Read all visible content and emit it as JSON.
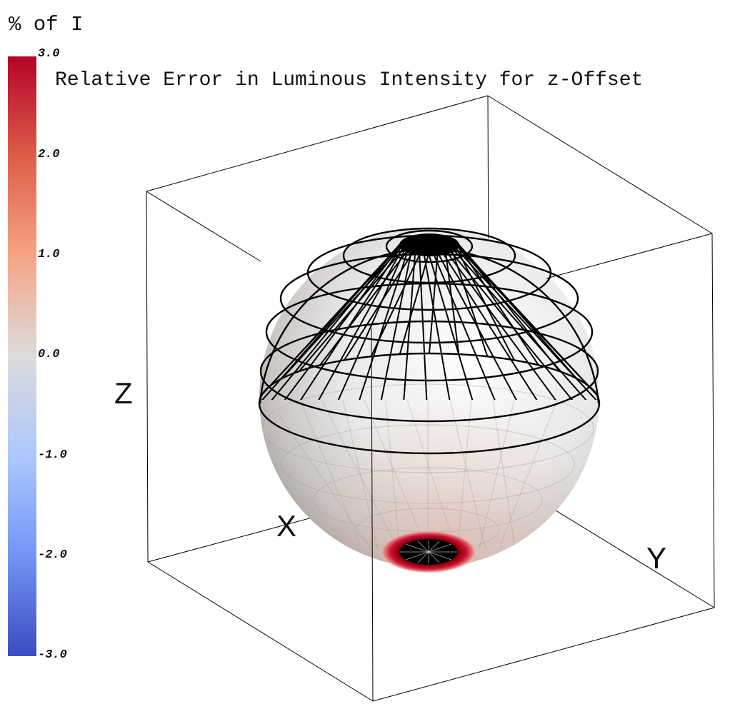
{
  "colorbar": {
    "title": "% of I",
    "ticks": [
      "3.0",
      "2.0",
      "1.0",
      "0.0",
      "-1.0",
      "-2.0",
      "-3.0"
    ]
  },
  "plot": {
    "title": "Relative Error in Luminous Intensity for z-Offset"
  },
  "axes": {
    "x_label": "X",
    "y_label": "Y",
    "z_label": "Z"
  },
  "colors": {
    "colormap_high": "#b40426",
    "colormap_mid": "#dddcdc",
    "colormap_low": "#3b4cc0",
    "wireframe": "#000000",
    "box_edges": "#000000"
  }
}
